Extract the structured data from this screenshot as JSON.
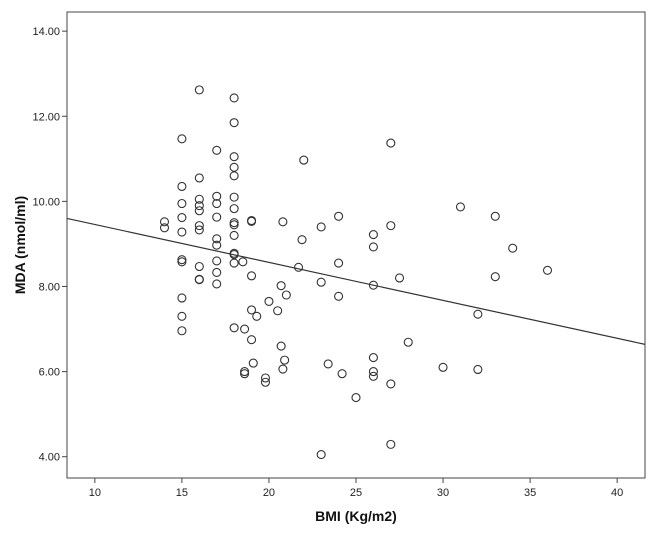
{
  "chart_data": {
    "type": "scatter",
    "xlabel": "BMI (Kg/m2)",
    "ylabel": "MDA (nmol/ml)",
    "xlim": [
      8.4,
      41.6
    ],
    "ylim": [
      3.5,
      14.45
    ],
    "x_ticks": [
      10,
      15,
      20,
      25,
      30,
      35,
      40
    ],
    "x_tick_labels": [
      "10",
      "15",
      "20",
      "25",
      "30",
      "35",
      "40"
    ],
    "y_ticks": [
      4,
      6,
      8,
      10,
      12,
      14
    ],
    "y_tick_labels": [
      "4.00",
      "6.00",
      "8.00",
      "10.00",
      "12.00",
      "14.00"
    ],
    "grid": false,
    "legend": "none",
    "marker": "open-circle",
    "marker_color": "#333333",
    "fit_line": {
      "x": [
        8.4,
        41.6
      ],
      "y": [
        9.6,
        6.64
      ]
    },
    "points": [
      {
        "x": 14,
        "y": 9.52
      },
      {
        "x": 14,
        "y": 9.38
      },
      {
        "x": 15,
        "y": 11.47
      },
      {
        "x": 15,
        "y": 10.35
      },
      {
        "x": 15,
        "y": 9.95
      },
      {
        "x": 15,
        "y": 9.62
      },
      {
        "x": 15,
        "y": 9.28
      },
      {
        "x": 15,
        "y": 8.63
      },
      {
        "x": 15,
        "y": 8.58
      },
      {
        "x": 15,
        "y": 7.73
      },
      {
        "x": 15,
        "y": 7.3
      },
      {
        "x": 15,
        "y": 6.96
      },
      {
        "x": 16,
        "y": 12.62
      },
      {
        "x": 16,
        "y": 10.55
      },
      {
        "x": 16,
        "y": 10.05
      },
      {
        "x": 16,
        "y": 9.9
      },
      {
        "x": 16,
        "y": 9.78
      },
      {
        "x": 16,
        "y": 9.43
      },
      {
        "x": 16,
        "y": 9.33
      },
      {
        "x": 16,
        "y": 8.47
      },
      {
        "x": 16,
        "y": 8.17
      },
      {
        "x": 16,
        "y": 8.16
      },
      {
        "x": 17,
        "y": 11.2
      },
      {
        "x": 17,
        "y": 10.12
      },
      {
        "x": 17,
        "y": 9.95
      },
      {
        "x": 17,
        "y": 9.63
      },
      {
        "x": 17,
        "y": 9.12
      },
      {
        "x": 17,
        "y": 8.97
      },
      {
        "x": 17,
        "y": 8.6
      },
      {
        "x": 17,
        "y": 8.33
      },
      {
        "x": 17,
        "y": 8.06
      },
      {
        "x": 18,
        "y": 12.43
      },
      {
        "x": 18,
        "y": 11.85
      },
      {
        "x": 18,
        "y": 11.05
      },
      {
        "x": 18,
        "y": 10.8
      },
      {
        "x": 18,
        "y": 10.6
      },
      {
        "x": 18,
        "y": 10.1
      },
      {
        "x": 18,
        "y": 9.83
      },
      {
        "x": 18,
        "y": 9.5
      },
      {
        "x": 18,
        "y": 9.45
      },
      {
        "x": 18,
        "y": 9.2
      },
      {
        "x": 18,
        "y": 8.78
      },
      {
        "x": 18,
        "y": 8.75
      },
      {
        "x": 18,
        "y": 8.55
      },
      {
        "x": 18,
        "y": 7.03
      },
      {
        "x": 18.5,
        "y": 8.58
      },
      {
        "x": 18.6,
        "y": 7.0
      },
      {
        "x": 18.6,
        "y": 6.0
      },
      {
        "x": 18.6,
        "y": 5.95
      },
      {
        "x": 19,
        "y": 9.55
      },
      {
        "x": 19,
        "y": 9.53
      },
      {
        "x": 19,
        "y": 8.25
      },
      {
        "x": 19,
        "y": 7.45
      },
      {
        "x": 19,
        "y": 6.75
      },
      {
        "x": 19.1,
        "y": 6.2
      },
      {
        "x": 19.3,
        "y": 7.3
      },
      {
        "x": 19.8,
        "y": 5.85
      },
      {
        "x": 19.8,
        "y": 5.75
      },
      {
        "x": 20,
        "y": 7.65
      },
      {
        "x": 20.5,
        "y": 7.43
      },
      {
        "x": 20.7,
        "y": 8.02
      },
      {
        "x": 20.7,
        "y": 6.6
      },
      {
        "x": 20.8,
        "y": 9.52
      },
      {
        "x": 20.8,
        "y": 6.06
      },
      {
        "x": 20.9,
        "y": 6.27
      },
      {
        "x": 21,
        "y": 7.8
      },
      {
        "x": 21.7,
        "y": 8.45
      },
      {
        "x": 21.9,
        "y": 9.1
      },
      {
        "x": 22,
        "y": 10.97
      },
      {
        "x": 23,
        "y": 9.4
      },
      {
        "x": 23,
        "y": 8.1
      },
      {
        "x": 23,
        "y": 4.05
      },
      {
        "x": 23.4,
        "y": 6.18
      },
      {
        "x": 24,
        "y": 9.65
      },
      {
        "x": 24,
        "y": 8.55
      },
      {
        "x": 24,
        "y": 7.77
      },
      {
        "x": 24.2,
        "y": 5.95
      },
      {
        "x": 25,
        "y": 5.39
      },
      {
        "x": 26,
        "y": 9.22
      },
      {
        "x": 26,
        "y": 8.93
      },
      {
        "x": 26,
        "y": 8.03
      },
      {
        "x": 26,
        "y": 6.33
      },
      {
        "x": 26,
        "y": 6.0
      },
      {
        "x": 26,
        "y": 5.89
      },
      {
        "x": 27,
        "y": 11.37
      },
      {
        "x": 27,
        "y": 9.43
      },
      {
        "x": 27,
        "y": 5.71
      },
      {
        "x": 27,
        "y": 4.29
      },
      {
        "x": 27.5,
        "y": 8.2
      },
      {
        "x": 28,
        "y": 6.69
      },
      {
        "x": 30,
        "y": 6.1
      },
      {
        "x": 31,
        "y": 9.87
      },
      {
        "x": 32,
        "y": 7.35
      },
      {
        "x": 32,
        "y": 6.05
      },
      {
        "x": 33,
        "y": 9.65
      },
      {
        "x": 33,
        "y": 8.23
      },
      {
        "x": 34,
        "y": 8.9
      },
      {
        "x": 36,
        "y": 8.38
      }
    ]
  }
}
